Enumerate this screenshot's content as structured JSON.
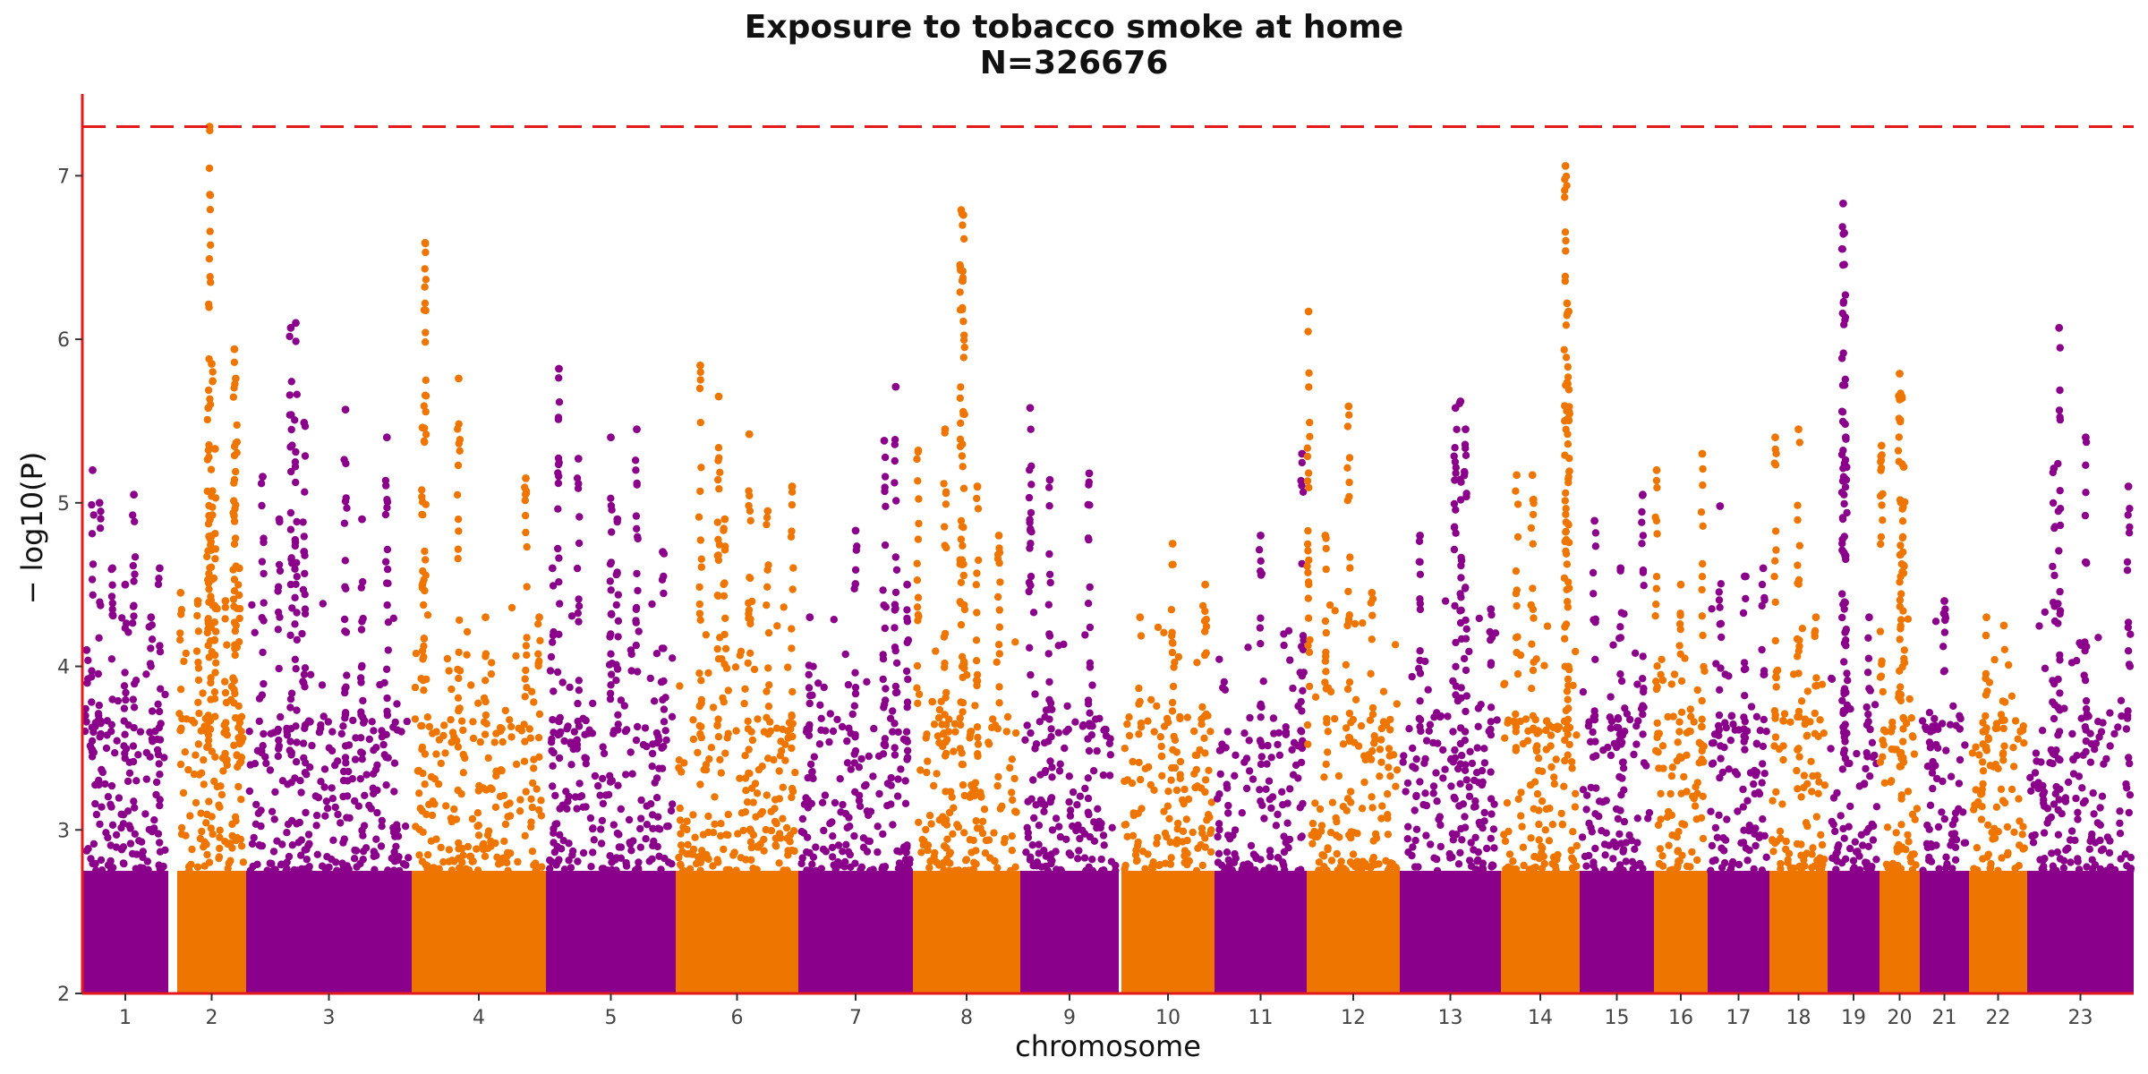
{
  "chart_data": {
    "type": "scatter",
    "title": "Exposure to tobacco smoke at home",
    "subtitle": "N=326676",
    "xlabel": "chromosome",
    "ylabel": "− log10(P)",
    "ylim": [
      2,
      7.5
    ],
    "yticks": [
      2,
      3,
      4,
      5,
      6,
      7
    ],
    "significance_line": 7.3,
    "colors": {
      "odd": "#8B008B",
      "even": "#EE7600",
      "axis": "#E31A1C",
      "threshold": "#E31A1C"
    },
    "chromosomes": [
      {
        "label": "1",
        "color": "#8B008B",
        "peaks": [
          [
            0.05,
            4.1
          ],
          [
            0.12,
            5.2
          ],
          [
            0.2,
            5.0
          ],
          [
            0.35,
            4.6
          ],
          [
            0.5,
            4.5
          ],
          [
            0.6,
            5.05
          ],
          [
            0.8,
            4.3
          ],
          [
            0.9,
            4.6
          ]
        ]
      },
      {
        "label": "2",
        "color": "#EE7600",
        "peaks": [
          [
            0.05,
            4.45
          ],
          [
            0.3,
            4.4
          ],
          [
            0.45,
            5.58
          ],
          [
            0.47,
            7.3
          ],
          [
            0.5,
            5.85
          ],
          [
            0.55,
            5.33
          ],
          [
            0.7,
            4.4
          ],
          [
            0.83,
            5.94
          ],
          [
            0.85,
            5.76
          ],
          [
            0.9,
            4.6
          ]
        ]
      },
      {
        "label": "3",
        "color": "#8B008B",
        "peaks": [
          [
            0.1,
            5.16
          ],
          [
            0.2,
            4.9
          ],
          [
            0.27,
            6.07
          ],
          [
            0.3,
            6.1
          ],
          [
            0.35,
            5.49
          ],
          [
            0.6,
            5.57
          ],
          [
            0.7,
            4.9
          ],
          [
            0.85,
            5.4
          ]
        ]
      },
      {
        "label": "4",
        "color": "#EE7600",
        "peaks": [
          [
            0.08,
            5.46
          ],
          [
            0.1,
            6.59
          ],
          [
            0.35,
            5.76
          ],
          [
            0.55,
            4.3
          ],
          [
            0.85,
            5.15
          ],
          [
            0.95,
            4.3
          ]
        ]
      },
      {
        "label": "5",
        "color": "#8B008B",
        "peaks": [
          [
            0.05,
            4.6
          ],
          [
            0.1,
            5.82
          ],
          [
            0.25,
            5.27
          ],
          [
            0.5,
            5.4
          ],
          [
            0.55,
            4.9
          ],
          [
            0.7,
            5.45
          ],
          [
            0.9,
            4.7
          ]
        ]
      },
      {
        "label": "6",
        "color": "#EE7600",
        "peaks": [
          [
            0.2,
            5.84
          ],
          [
            0.35,
            5.65
          ],
          [
            0.4,
            4.9
          ],
          [
            0.6,
            5.42
          ],
          [
            0.75,
            4.95
          ],
          [
            0.95,
            5.1
          ]
        ]
      },
      {
        "label": "7",
        "color": "#8B008B",
        "peaks": [
          [
            0.1,
            4.3
          ],
          [
            0.5,
            4.83
          ],
          [
            0.75,
            5.38
          ],
          [
            0.85,
            5.71
          ],
          [
            0.95,
            4.5
          ]
        ]
      },
      {
        "label": "8",
        "color": "#EE7600",
        "peaks": [
          [
            0.05,
            5.32
          ],
          [
            0.3,
            5.45
          ],
          [
            0.45,
            6.79
          ],
          [
            0.47,
            6.76
          ],
          [
            0.6,
            5.1
          ],
          [
            0.8,
            4.8
          ]
        ]
      },
      {
        "label": "9",
        "color": "#8B008B",
        "peaks": [
          [
            0.1,
            5.58
          ],
          [
            0.3,
            5.14
          ],
          [
            0.7,
            5.18
          ]
        ]
      },
      {
        "label": "10",
        "color": "#EE7600",
        "peaks": [
          [
            0.2,
            4.3
          ],
          [
            0.55,
            4.75
          ],
          [
            0.9,
            4.5
          ]
        ]
      },
      {
        "label": "11",
        "color": "#8B008B",
        "peaks": [
          [
            0.5,
            4.8
          ],
          [
            0.95,
            5.3
          ]
        ]
      },
      {
        "label": "12",
        "color": "#EE7600",
        "peaks": [
          [
            0.02,
            6.17
          ],
          [
            0.2,
            4.8
          ],
          [
            0.45,
            5.59
          ],
          [
            0.7,
            4.45
          ]
        ]
      },
      {
        "label": "13",
        "color": "#8B008B",
        "peaks": [
          [
            0.2,
            4.8
          ],
          [
            0.55,
            5.58
          ],
          [
            0.6,
            5.62
          ],
          [
            0.65,
            5.45
          ],
          [
            0.9,
            4.35
          ]
        ]
      },
      {
        "label": "14",
        "color": "#EE7600",
        "peaks": [
          [
            0.2,
            5.17
          ],
          [
            0.4,
            5.17
          ],
          [
            0.82,
            7.06
          ],
          [
            0.84,
            6.22
          ],
          [
            0.86,
            6.17
          ]
        ]
      },
      {
        "label": "15",
        "color": "#8B008B",
        "peaks": [
          [
            0.2,
            4.89
          ],
          [
            0.55,
            4.6
          ],
          [
            0.85,
            5.05
          ]
        ]
      },
      {
        "label": "16",
        "color": "#EE7600",
        "peaks": [
          [
            0.05,
            5.2
          ],
          [
            0.5,
            4.5
          ],
          [
            0.9,
            5.3
          ]
        ]
      },
      {
        "label": "17",
        "color": "#8B008B",
        "peaks": [
          [
            0.2,
            4.98
          ],
          [
            0.6,
            4.55
          ],
          [
            0.9,
            4.6
          ]
        ]
      },
      {
        "label": "18",
        "color": "#EE7600",
        "peaks": [
          [
            0.1,
            5.4
          ],
          [
            0.5,
            5.45
          ],
          [
            0.8,
            4.3
          ]
        ]
      },
      {
        "label": "19",
        "color": "#8B008B",
        "peaks": [
          [
            0.3,
            6.83
          ],
          [
            0.32,
            6.65
          ],
          [
            0.35,
            5.4
          ],
          [
            0.8,
            4.3
          ]
        ]
      },
      {
        "label": "20",
        "color": "#EE7600",
        "peaks": [
          [
            0.05,
            5.35
          ],
          [
            0.5,
            5.79
          ],
          [
            0.55,
            5.65
          ],
          [
            0.6,
            5.22
          ]
        ]
      },
      {
        "label": "21",
        "color": "#8B008B",
        "peaks": [
          [
            0.5,
            4.4
          ]
        ]
      },
      {
        "label": "22",
        "color": "#EE7600",
        "peaks": [
          [
            0.3,
            4.3
          ],
          [
            0.6,
            4.25
          ]
        ]
      },
      {
        "label": "23",
        "color": "#8B008B",
        "peaks": [
          [
            0.25,
            5.21
          ],
          [
            0.3,
            6.07
          ],
          [
            0.55,
            5.4
          ],
          [
            0.95,
            5.1
          ]
        ]
      }
    ]
  }
}
